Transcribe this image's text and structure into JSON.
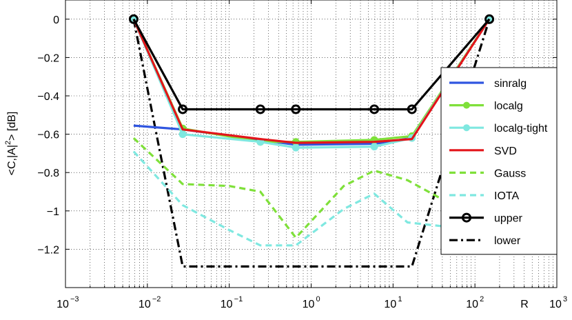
{
  "chart_data": {
    "type": "line",
    "xscale": "log",
    "xlim": [
      0.001,
      1000
    ],
    "ylim": [
      -1.4,
      0.1
    ],
    "x_ticks": [
      {
        "base": "10",
        "exp": "−3"
      },
      {
        "base": "10",
        "exp": "−2"
      },
      {
        "base": "10",
        "exp": "−1"
      },
      {
        "base": "10",
        "exp": "0"
      },
      {
        "base": "10",
        "exp": "1"
      },
      {
        "base": "10",
        "exp": "2"
      },
      {
        "base": "10",
        "exp": "3"
      }
    ],
    "y_ticks": [
      0,
      -0.2,
      -0.4,
      -0.6,
      -0.8,
      -1,
      -1.2
    ],
    "y_tick_labels": [
      "0",
      "−0.2",
      "−0.4",
      "−0.6",
      "−0.8",
      "−1",
      "−1.2"
    ],
    "xlabel": "R",
    "ylabel": "<C,|A|²> [dB]",
    "grid": true,
    "legend_position": "right",
    "series": [
      {
        "name": "sinralg",
        "color": "#2f55e0",
        "style": "solid",
        "marker": "none",
        "x": [
          0.0068,
          0.027,
          0.24,
          0.65,
          5.9,
          17
        ],
        "y": [
          -0.555,
          -0.575,
          -0.63,
          -0.655,
          -0.65,
          -0.62
        ]
      },
      {
        "name": "localg",
        "color": "#7fe03a",
        "style": "solid",
        "marker": "dot",
        "x": [
          0.0068,
          0.027,
          0.24,
          0.65,
          5.9,
          17,
          150
        ],
        "y": [
          0,
          -0.57,
          -0.64,
          -0.64,
          -0.63,
          -0.61,
          0
        ]
      },
      {
        "name": "localg-tight",
        "color": "#7fe8e0",
        "style": "solid",
        "marker": "dot",
        "x": [
          0.0068,
          0.027,
          0.24,
          0.65,
          5.9,
          17,
          150
        ],
        "y": [
          0,
          -0.6,
          -0.64,
          -0.67,
          -0.665,
          -0.62,
          0
        ]
      },
      {
        "name": "SVD",
        "color": "#e3151a",
        "style": "solid",
        "marker": "none",
        "x": [
          0.0068,
          0.027,
          0.24,
          0.65,
          5.9,
          17,
          150
        ],
        "y": [
          0,
          -0.575,
          -0.625,
          -0.645,
          -0.64,
          -0.625,
          0
        ]
      },
      {
        "name": "Gauss",
        "color": "#7fe03a",
        "style": "dashed",
        "marker": "none",
        "x": [
          0.0068,
          0.027,
          0.1,
          0.24,
          0.65,
          2.5,
          5.9,
          15,
          40
        ],
        "y": [
          -0.62,
          -0.86,
          -0.87,
          -0.9,
          -1.14,
          -0.87,
          -0.79,
          -0.84,
          -0.94
        ]
      },
      {
        "name": "IOTA",
        "color": "#7fe8e0",
        "style": "dashed",
        "marker": "none",
        "x": [
          0.0068,
          0.027,
          0.1,
          0.24,
          0.65,
          2.5,
          5.9,
          15,
          40
        ],
        "y": [
          -0.69,
          -0.97,
          -1.1,
          -1.18,
          -1.18,
          -0.99,
          -0.91,
          -1.06,
          -1.08
        ]
      },
      {
        "name": "upper",
        "color": "#000000",
        "style": "solid",
        "marker": "circle",
        "x": [
          0.0068,
          0.027,
          0.24,
          0.65,
          5.9,
          17,
          150
        ],
        "y": [
          0,
          -0.47,
          -0.47,
          -0.47,
          -0.47,
          -0.47,
          0
        ]
      },
      {
        "name": "lower",
        "color": "#000000",
        "style": "dashdot",
        "marker": "none",
        "x": [
          0.0068,
          0.027,
          17,
          150
        ],
        "y": [
          0,
          -1.29,
          -1.29,
          0
        ]
      }
    ]
  }
}
